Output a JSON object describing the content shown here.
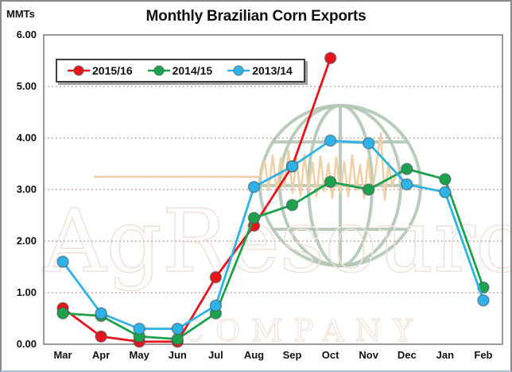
{
  "header": {
    "title": "Monthly Brazilian Corn Exports",
    "unit_label": "MMTs"
  },
  "chart_data": {
    "type": "line",
    "title": "Monthly Brazilian Corn Exports",
    "ylabel": "MMTs",
    "xlabel": "",
    "categories": [
      "Mar",
      "Apr",
      "May",
      "Jun",
      "Jul",
      "Aug",
      "Sep",
      "Oct",
      "Nov",
      "Dec",
      "Jan",
      "Feb"
    ],
    "series": [
      {
        "name": "2015/16",
        "color": "#e8141c",
        "values": [
          0.7,
          0.15,
          0.05,
          0.05,
          1.3,
          2.3,
          3.45,
          5.55,
          null,
          null,
          null,
          null
        ]
      },
      {
        "name": "2014/15",
        "color": "#1ca24c",
        "values": [
          0.6,
          0.55,
          0.15,
          0.1,
          0.6,
          2.45,
          2.7,
          3.15,
          3.0,
          3.4,
          3.2,
          1.1
        ]
      },
      {
        "name": "2013/14",
        "color": "#2eb3e8",
        "values": [
          1.6,
          0.6,
          0.3,
          0.3,
          0.75,
          3.05,
          3.45,
          3.95,
          3.9,
          3.1,
          2.95,
          0.85
        ]
      }
    ],
    "ylim": [
      0,
      6
    ],
    "yticks": [
      "6.00",
      "5.00",
      "4.00",
      "3.00",
      "2.00",
      "1.00",
      "0.00"
    ],
    "grid": "horizontal dotted",
    "gridline_color": "#c7a3a3",
    "plot_border_color": "#8f8f8f",
    "legend_position": "top-left inside",
    "marker": "circle"
  },
  "watermark": {
    "texts": [
      "AgResource",
      "COMPANY"
    ],
    "globe_color": "#b3c6b4",
    "heartbeat_color": "#f1cfa4",
    "text_color": "#f2e2dc"
  }
}
